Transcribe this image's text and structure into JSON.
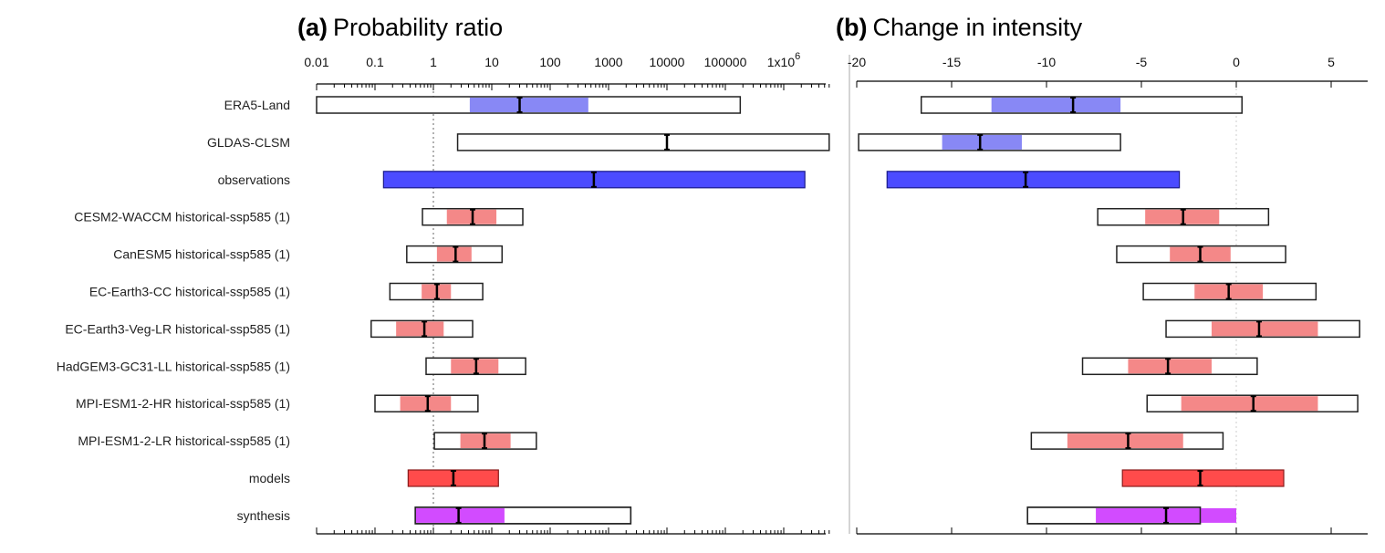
{
  "chart_data": [
    {
      "type": "bar",
      "subtype": "horizontal-interval",
      "panel": "a",
      "title_prefix": "(a)",
      "title": "Probability ratio",
      "xscale": "log",
      "xlim": [
        0.01,
        6000000
      ],
      "xticks": [
        0.01,
        0.1,
        1,
        10,
        100,
        1000,
        10000,
        100000,
        1000000
      ],
      "xtick_labels": [
        "0.01",
        "0.1",
        "1",
        "10",
        "100",
        "1000",
        "10000",
        "100000",
        "1x10^6"
      ],
      "reference_line": 1,
      "categories": [
        "ERA5-Land",
        "GLDAS-CLSM",
        "observations",
        "CESM2-WACCM historical-ssp585 (1)",
        "CanESM5 historical-ssp585 (1)",
        "EC-Earth3-CC historical-ssp585 (1)",
        "EC-Earth3-Veg-LR historical-ssp585 (1)",
        "HadGEM3-GC31-LL historical-ssp585 (1)",
        "MPI-ESM1-2-HR historical-ssp585 (1)",
        "MPI-ESM1-2-LR historical-ssp585 (1)",
        "models",
        "synthesis"
      ],
      "rows": [
        {
          "outer": [
            0.01,
            180000
          ],
          "inner": [
            4.2,
            450
          ],
          "best": 30,
          "kind": "obs"
        },
        {
          "outer": [
            2.6,
            6000000
          ],
          "inner": null,
          "best": 10000,
          "kind": "obs"
        },
        {
          "outer": [
            0.14,
            2300000
          ],
          "inner": [
            0.14,
            2300000
          ],
          "best": 560,
          "kind": "obs-summary"
        },
        {
          "outer": [
            0.65,
            34
          ],
          "inner": [
            1.7,
            12
          ],
          "best": 4.7,
          "kind": "model"
        },
        {
          "outer": [
            0.35,
            15
          ],
          "inner": [
            1.15,
            4.5
          ],
          "best": 2.4,
          "kind": "model"
        },
        {
          "outer": [
            0.18,
            7
          ],
          "inner": [
            0.63,
            2.0
          ],
          "best": 1.15,
          "kind": "model"
        },
        {
          "outer": [
            0.086,
            4.7
          ],
          "inner": [
            0.23,
            1.5
          ],
          "best": 0.7,
          "kind": "model"
        },
        {
          "outer": [
            0.75,
            38
          ],
          "inner": [
            2.0,
            13
          ],
          "best": 5.4,
          "kind": "model"
        },
        {
          "outer": [
            0.1,
            5.8
          ],
          "inner": [
            0.27,
            2.0
          ],
          "best": 0.8,
          "kind": "model"
        },
        {
          "outer": [
            1.04,
            58
          ],
          "inner": [
            2.9,
            21
          ],
          "best": 7.5,
          "kind": "model"
        },
        {
          "outer": [
            0.37,
            13
          ],
          "inner": [
            0.37,
            13
          ],
          "best": 2.2,
          "kind": "model-summary"
        },
        {
          "outer": [
            0.49,
            2400
          ],
          "inner": [
            0.49,
            16.5
          ],
          "best": 2.7,
          "kind": "synthesis"
        }
      ]
    },
    {
      "type": "bar",
      "subtype": "horizontal-interval",
      "panel": "b",
      "title_prefix": "(b)",
      "title": "Change in intensity",
      "xscale": "linear",
      "xlim": [
        -20,
        6.9
      ],
      "xticks": [
        -20,
        -15,
        -10,
        -5,
        0,
        5
      ],
      "xtick_labels": [
        "-20",
        "-15",
        "-10",
        "-5",
        "0",
        "5"
      ],
      "reference_line": 0,
      "rows": [
        {
          "outer": [
            -16.6,
            0.3
          ],
          "inner": [
            -12.9,
            -6.1
          ],
          "best": -8.6,
          "kind": "obs"
        },
        {
          "outer": [
            -19.9,
            -6.1
          ],
          "inner": [
            -15.5,
            -11.3
          ],
          "best": -13.5,
          "kind": "obs"
        },
        {
          "outer": [
            -18.4,
            -3.0
          ],
          "inner": [
            -18.4,
            -3.0
          ],
          "best": -11.1,
          "kind": "obs-summary"
        },
        {
          "outer": [
            -7.3,
            1.7
          ],
          "inner": [
            -4.8,
            -0.9
          ],
          "best": -2.8,
          "kind": "model"
        },
        {
          "outer": [
            -6.3,
            2.6
          ],
          "inner": [
            -3.5,
            -0.3
          ],
          "best": -1.9,
          "kind": "model"
        },
        {
          "outer": [
            -4.9,
            4.2
          ],
          "inner": [
            -2.2,
            1.4
          ],
          "best": -0.4,
          "kind": "model"
        },
        {
          "outer": [
            -3.7,
            6.5
          ],
          "inner": [
            -1.3,
            4.3
          ],
          "best": 1.2,
          "kind": "model"
        },
        {
          "outer": [
            -8.1,
            1.1
          ],
          "inner": [
            -5.7,
            -1.3
          ],
          "best": -3.6,
          "kind": "model"
        },
        {
          "outer": [
            -4.7,
            6.4
          ],
          "inner": [
            -2.9,
            4.3
          ],
          "best": 0.9,
          "kind": "model"
        },
        {
          "outer": [
            -10.8,
            -0.7
          ],
          "inner": [
            -8.9,
            -2.8
          ],
          "best": -5.7,
          "kind": "model"
        },
        {
          "outer": [
            -6.0,
            2.5
          ],
          "inner": [
            -6.0,
            2.5
          ],
          "best": -1.9,
          "kind": "model-summary"
        },
        {
          "outer": [
            -11.0,
            -1.9
          ],
          "inner": [
            -7.4,
            0.0
          ],
          "best": -3.7,
          "kind": "synthesis"
        }
      ]
    }
  ],
  "colors": {
    "obs": "#8888f5",
    "obs-summary": "#4b4bff",
    "model": "#f48888",
    "model-summary": "#ff4b4b",
    "synthesis": "#d24bff"
  }
}
